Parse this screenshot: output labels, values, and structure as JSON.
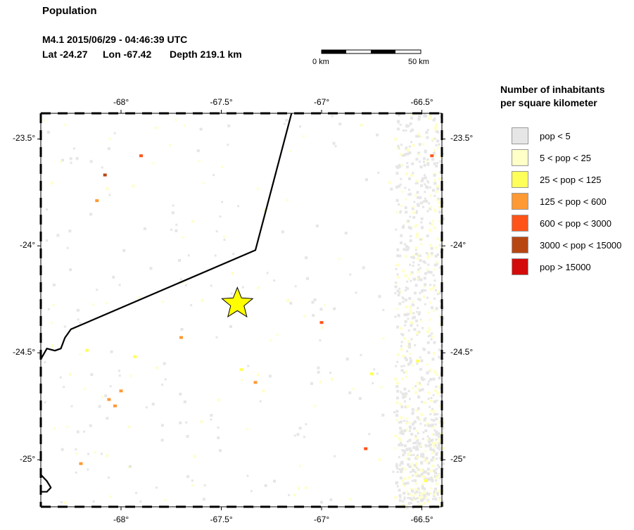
{
  "header": {
    "title": "Population",
    "event_line": "M4.1  2015/06/29 - 04:46:39 UTC",
    "lat_text": "Lat -24.27",
    "lon_text": "Lon -67.42",
    "depth_text": "Depth 219.1 km"
  },
  "scalebar": {
    "start_label": "0 km",
    "end_label": "50 km"
  },
  "map": {
    "lon_range": [
      -68.4,
      -66.4
    ],
    "lat_range": [
      -25.22,
      -23.38
    ],
    "lon_ticks": [
      {
        "value": -68.0,
        "label": "-68°"
      },
      {
        "value": -67.5,
        "label": "-67.5°"
      },
      {
        "value": -67.0,
        "label": "-67°"
      },
      {
        "value": -66.5,
        "label": "-66.5°"
      }
    ],
    "lat_ticks": [
      {
        "value": -23.5,
        "label": "-23.5°"
      },
      {
        "value": -24.0,
        "label": "-24°"
      },
      {
        "value": -24.5,
        "label": "-24.5°"
      },
      {
        "value": -25.0,
        "label": "-25°"
      }
    ],
    "epicenter": {
      "lon": -67.42,
      "lat": -24.27,
      "color": "#ffff00"
    },
    "border_line": [
      [
        -67.15,
        -23.38
      ],
      [
        -67.33,
        -24.02
      ],
      [
        -68.25,
        -24.39
      ],
      [
        -68.28,
        -24.43
      ],
      [
        -68.3,
        -24.48
      ],
      [
        -68.33,
        -24.49
      ],
      [
        -68.37,
        -24.48
      ],
      [
        -68.4,
        -24.53
      ]
    ],
    "border_line_south": [
      [
        -68.4,
        -25.07
      ],
      [
        -68.37,
        -25.1
      ],
      [
        -68.35,
        -25.13
      ],
      [
        -68.37,
        -25.15
      ],
      [
        -68.4,
        -25.15
      ]
    ],
    "population_spots": [
      {
        "lon": -68.08,
        "lat": -23.67,
        "class": 5
      },
      {
        "lon": -67.9,
        "lat": -23.58,
        "class": 4
      },
      {
        "lon": -68.12,
        "lat": -23.79,
        "class": 3
      },
      {
        "lon": -67.4,
        "lat": -24.58,
        "class": 2
      },
      {
        "lon": -67.0,
        "lat": -24.36,
        "class": 4
      },
      {
        "lon": -67.33,
        "lat": -24.64,
        "class": 3
      },
      {
        "lon": -68.0,
        "lat": -24.68,
        "class": 3
      },
      {
        "lon": -67.7,
        "lat": -24.43,
        "class": 3
      },
      {
        "lon": -67.93,
        "lat": -24.52,
        "class": 2
      },
      {
        "lon": -68.03,
        "lat": -24.75,
        "class": 3
      },
      {
        "lon": -68.2,
        "lat": -25.02,
        "class": 3
      },
      {
        "lon": -66.78,
        "lat": -24.95,
        "class": 4
      },
      {
        "lon": -66.45,
        "lat": -23.58,
        "class": 4
      },
      {
        "lon": -66.52,
        "lat": -24.54,
        "class": 2
      },
      {
        "lon": -66.48,
        "lat": -25.1,
        "class": 2
      },
      {
        "lon": -68.17,
        "lat": -24.49,
        "class": 2
      },
      {
        "lon": -66.75,
        "lat": -24.6,
        "class": 2
      },
      {
        "lon": -68.06,
        "lat": -24.72,
        "class": 3
      }
    ]
  },
  "legend": {
    "title_line1": "Number of inhabitants",
    "title_line2": "per square kilometer",
    "items": [
      {
        "label": "pop < 5",
        "color": "#e6e6e6"
      },
      {
        "label": "5 < pop < 25",
        "color": "#ffffc8"
      },
      {
        "label": "25 < pop < 125",
        "color": "#ffff5a"
      },
      {
        "label": "125 < pop < 600",
        "color": "#ff9933"
      },
      {
        "label": "600 < pop < 3000",
        "color": "#ff5319"
      },
      {
        "label": "3000 < pop < 15000",
        "color": "#b84612"
      },
      {
        "label": "pop > 15000",
        "color": "#d40b0b"
      }
    ]
  }
}
